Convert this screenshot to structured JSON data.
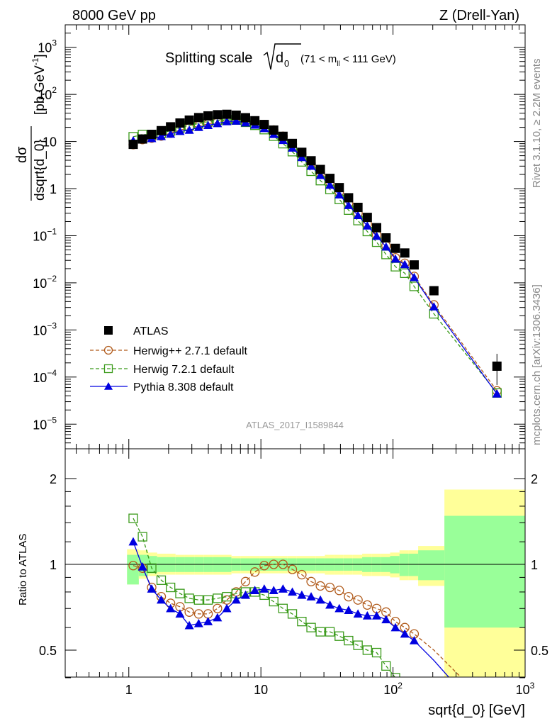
{
  "header": {
    "left": "8000 GeV pp",
    "right": "Z (Drell-Yan)"
  },
  "side_text": {
    "rivet": "Rivet 3.1.10, ≥ 2.2M events",
    "mcplots": "mcplots.cern.ch [arXiv:1306.3436]"
  },
  "chart_data": {
    "type": "scatter",
    "title": "Splitting scale",
    "title_sub": "(71 < m",
    "title_sub2": " < 111 GeV)",
    "sqrt_label": "d",
    "sqrt_sub": "0",
    "mll_sub": "ll",
    "analysis": "ATLAS_2017_I1589844",
    "xlabel": "sqrt{d_0} [GeV]",
    "ylabel_num": "dσ",
    "ylabel_den": "dsqrt{d_0}",
    "ylabel_unit": "[pb,GeV",
    "ylabel_exp": "-1",
    "ylabel_close": "]",
    "ratio_ylabel": "Ratio to ATLAS",
    "xscale": "log",
    "yscale": "log",
    "xlim": [
      0.33,
      1000
    ],
    "ylim": [
      3e-06,
      3000
    ],
    "ratio_ylim": [
      0.35,
      2.3
    ],
    "x_ticks": [
      {
        "v": 1,
        "t": "1"
      },
      {
        "v": 10,
        "t": "10"
      },
      {
        "v": 100,
        "t": "10",
        "e": "2"
      },
      {
        "v": 1000,
        "t": "10",
        "e": "3"
      }
    ],
    "y_ticks": [
      {
        "v": 1e-05,
        "t": "10",
        "e": "−5"
      },
      {
        "v": 0.0001,
        "t": "10",
        "e": "−4"
      },
      {
        "v": 0.001,
        "t": "10",
        "e": "−3"
      },
      {
        "v": 0.01,
        "t": "10",
        "e": "−2"
      },
      {
        "v": 0.1,
        "t": "10",
        "e": "−1"
      },
      {
        "v": 1,
        "t": "1"
      },
      {
        "v": 10,
        "t": "10"
      },
      {
        "v": 100,
        "t": "10",
        "e": "2"
      },
      {
        "v": 1000,
        "t": "10",
        "e": "3"
      }
    ],
    "ratio_ticks": [
      {
        "v": 0.5,
        "t": "0.5"
      },
      {
        "v": 1,
        "t": "1"
      },
      {
        "v": 2,
        "t": "2"
      }
    ],
    "legend_position": "lower-left",
    "legend": [
      {
        "name": "ATLAS",
        "color": "#000000",
        "marker": "square-filled"
      },
      {
        "name": "Herwig++ 2.7.1 default",
        "color": "#b05a1a",
        "marker": "circle-open"
      },
      {
        "name": "Herwig 7.2.1 default",
        "color": "#3a9a1a",
        "marker": "square-open"
      },
      {
        "name": "Pythia 8.308 default",
        "color": "#0000e0",
        "marker": "triangle-filled"
      }
    ],
    "x": [
      1.08,
      1.27,
      1.49,
      1.76,
      2.07,
      2.44,
      2.87,
      3.38,
      3.98,
      4.69,
      5.52,
      6.5,
      7.65,
      9.0,
      10.6,
      12.5,
      14.7,
      17.3,
      20.4,
      24.0,
      28.2,
      33.3,
      39.2,
      46.1,
      54.3,
      63.9,
      75.2,
      88.6,
      104.3,
      122.8,
      144.6,
      204,
      612
    ],
    "atlas": [
      8.7,
      11.3,
      14.2,
      17,
      20.5,
      24.7,
      28.5,
      32.2,
      35,
      37,
      37.8,
      36.2,
      32,
      27.6,
      23,
      17.5,
      12.9,
      9.1,
      5.9,
      3.9,
      2.55,
      1.65,
      1.05,
      0.64,
      0.4,
      0.245,
      0.148,
      0.09,
      0.054,
      0.043,
      0.024,
      0.0068,
      0.00017
    ],
    "atlas_err_lo": [
      0.15,
      0.09,
      0.07,
      0.06,
      0.06,
      0.06,
      0.06,
      0.06,
      0.06,
      0.06,
      0.06,
      0.05,
      0.05,
      0.05,
      0.05,
      0.05,
      0.05,
      0.05,
      0.05,
      0.05,
      0.05,
      0.05,
      0.05,
      0.05,
      0.05,
      0.06,
      0.06,
      0.06,
      0.07,
      0.09,
      0.09,
      0.12,
      0.4
    ],
    "atlas_err_hi": [
      0.08,
      0.08,
      0.07,
      0.06,
      0.06,
      0.06,
      0.06,
      0.06,
      0.06,
      0.06,
      0.06,
      0.05,
      0.05,
      0.05,
      0.05,
      0.05,
      0.05,
      0.05,
      0.05,
      0.05,
      0.05,
      0.05,
      0.05,
      0.05,
      0.05,
      0.06,
      0.06,
      0.06,
      0.07,
      0.09,
      0.09,
      0.12,
      0.48
    ],
    "atlas_tot_lo": [
      0.15,
      0.11,
      0.09,
      0.08,
      0.08,
      0.08,
      0.08,
      0.08,
      0.08,
      0.08,
      0.08,
      0.07,
      0.07,
      0.07,
      0.07,
      0.07,
      0.07,
      0.07,
      0.07,
      0.07,
      0.07,
      0.08,
      0.08,
      0.08,
      0.08,
      0.09,
      0.09,
      0.09,
      0.1,
      0.12,
      0.12,
      0.16,
      0.6
    ],
    "atlas_tot_hi": [
      0.13,
      0.12,
      0.1,
      0.09,
      0.09,
      0.08,
      0.08,
      0.08,
      0.08,
      0.08,
      0.08,
      0.07,
      0.07,
      0.07,
      0.07,
      0.07,
      0.07,
      0.07,
      0.07,
      0.07,
      0.07,
      0.08,
      0.08,
      0.08,
      0.08,
      0.09,
      0.09,
      0.09,
      0.1,
      0.12,
      0.12,
      0.16,
      0.83
    ],
    "band_edges": [
      0.97,
      1.19,
      1.4,
      1.64,
      1.93,
      2.26,
      2.66,
      3.13,
      3.68,
      4.33,
      5.09,
      5.99,
      7.05,
      8.29,
      9.75,
      11.5,
      13.5,
      15.9,
      18.7,
      22,
      25.9,
      30.5,
      35.8,
      42.2,
      49.6,
      58.4,
      68.7,
      80.8,
      95.1,
      112,
      131.7,
      155,
      245,
      1000
    ],
    "ratio_series": [
      {
        "name": "Herwig++ 2.7.1 default",
        "color": "#b05a1a",
        "marker": "circle-open",
        "dashed": true,
        "x": [
          1.08,
          1.27,
          1.49,
          1.76,
          2.07,
          2.44,
          2.87,
          3.38,
          3.98,
          4.69,
          5.52,
          6.5,
          7.65,
          9.0,
          10.6,
          12.5,
          14.7,
          17.3,
          20.4,
          24.0,
          28.2,
          33.3,
          39.2,
          46.1,
          54.3,
          63.9,
          75.2,
          88.6,
          104.3,
          122.8,
          144.6,
          204,
          612
        ],
        "y": [
          0.99,
          0.97,
          0.83,
          0.77,
          0.73,
          0.71,
          0.68,
          0.67,
          0.67,
          0.7,
          0.75,
          0.8,
          0.87,
          0.94,
          0.99,
          1.0,
          1.0,
          0.96,
          0.92,
          0.87,
          0.84,
          0.83,
          0.81,
          0.77,
          0.75,
          0.72,
          0.7,
          0.68,
          0.63,
          0.6,
          0.57,
          0.5,
          0.3
        ]
      },
      {
        "name": "Herwig 7.2.1 default",
        "color": "#3a9a1a",
        "marker": "square-open",
        "dashed": true,
        "x": [
          1.08,
          1.27,
          1.49,
          1.76,
          2.07,
          2.44,
          2.87,
          3.38,
          3.98,
          4.69,
          5.52,
          6.5,
          7.65,
          9.0,
          10.6,
          12.5,
          14.7,
          17.3,
          20.4,
          24.0,
          28.2,
          33.3,
          39.2,
          46.1,
          54.3,
          63.9,
          75.2,
          88.6,
          104.3,
          122.8,
          144.6,
          204,
          612
        ],
        "y": [
          1.45,
          1.25,
          0.97,
          0.88,
          0.83,
          0.79,
          0.76,
          0.75,
          0.75,
          0.76,
          0.77,
          0.79,
          0.8,
          0.8,
          0.78,
          0.74,
          0.7,
          0.67,
          0.63,
          0.6,
          0.58,
          0.58,
          0.56,
          0.54,
          0.52,
          0.5,
          0.49,
          0.44,
          0.4,
          0.37,
          0.35,
          0.33,
          0.27
        ]
      },
      {
        "name": "Pythia 8.308 default",
        "color": "#0000e0",
        "marker": "triangle-filled",
        "dashed": false,
        "x": [
          1.08,
          1.27,
          1.49,
          1.76,
          2.07,
          2.44,
          2.87,
          3.38,
          3.98,
          4.69,
          5.52,
          6.5,
          7.65,
          9.0,
          10.6,
          12.5,
          14.7,
          17.3,
          20.4,
          24.0,
          28.2,
          33.3,
          39.2,
          46.1,
          54.3,
          63.9,
          75.2,
          88.6,
          104.3,
          122.8,
          144.6,
          204,
          612
        ],
        "y": [
          1.2,
          0.98,
          0.82,
          0.75,
          0.7,
          0.67,
          0.61,
          0.62,
          0.63,
          0.65,
          0.7,
          0.75,
          0.78,
          0.81,
          0.82,
          0.81,
          0.82,
          0.8,
          0.78,
          0.77,
          0.75,
          0.72,
          0.7,
          0.69,
          0.67,
          0.66,
          0.66,
          0.64,
          0.6,
          0.57,
          0.54,
          0.46,
          0.26
        ]
      }
    ],
    "main_series": [
      {
        "name": "Herwig++ 2.7.1 default",
        "values": [
          8.6,
          11,
          11.8,
          13.1,
          15,
          17.5,
          19.4,
          21.6,
          23.5,
          25.9,
          28.4,
          29,
          27.8,
          25.9,
          22.8,
          17.5,
          12.9,
          8.7,
          5.4,
          3.4,
          2.14,
          1.37,
          0.85,
          0.49,
          0.3,
          0.176,
          0.104,
          0.061,
          0.034,
          0.026,
          0.0137,
          0.0034,
          5.1e-05
        ]
      },
      {
        "name": "Herwig 7.2.1 default",
        "values": [
          12.6,
          14.1,
          13.8,
          15,
          17,
          19.5,
          21.7,
          24.2,
          26.3,
          28.1,
          29.1,
          28.6,
          25.6,
          22.1,
          17.9,
          13,
          9,
          6.1,
          3.7,
          2.34,
          1.48,
          0.96,
          0.59,
          0.35,
          0.21,
          0.123,
          0.073,
          0.04,
          0.022,
          0.016,
          0.0084,
          0.0022,
          4.6e-05
        ]
      },
      {
        "name": "Pythia 8.308 default",
        "values": [
          10.4,
          11.1,
          11.6,
          12.8,
          14.4,
          16.5,
          17.4,
          20,
          22,
          24.1,
          26.5,
          27.2,
          25,
          22.4,
          18.9,
          14.2,
          10.6,
          7.3,
          4.6,
          3.0,
          1.91,
          1.19,
          0.74,
          0.44,
          0.27,
          0.162,
          0.098,
          0.058,
          0.032,
          0.0245,
          0.013,
          0.0031,
          4.4e-05
        ]
      }
    ]
  }
}
